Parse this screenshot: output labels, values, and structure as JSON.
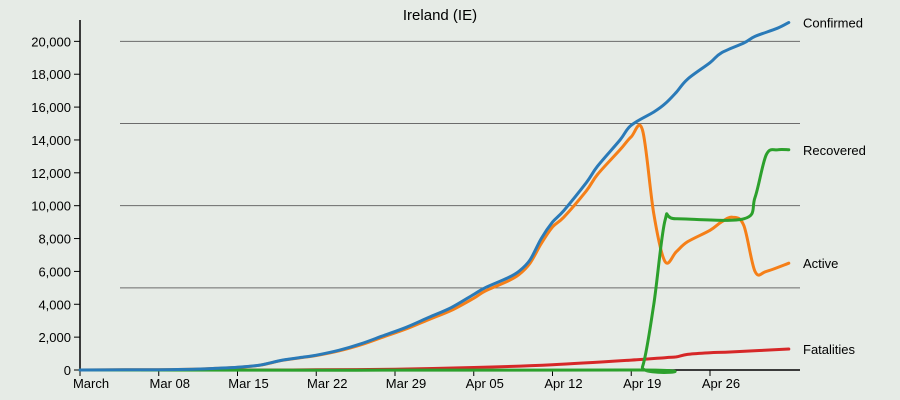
{
  "chart_data": {
    "type": "line",
    "title": "Ireland (IE)",
    "xlabel": "",
    "ylabel": "",
    "x_start": "2020-03-01",
    "x_end": "2020-05-04",
    "ylim": [
      0,
      21300
    ],
    "x_ticks": [
      {
        "label": "March",
        "date": "2020-03-01"
      },
      {
        "label": "Mar 08",
        "date": "2020-03-08"
      },
      {
        "label": "Mar 15",
        "date": "2020-03-15"
      },
      {
        "label": "Mar 22",
        "date": "2020-03-22"
      },
      {
        "label": "Mar 29",
        "date": "2020-03-29"
      },
      {
        "label": "Apr 05",
        "date": "2020-04-05"
      },
      {
        "label": "Apr 12",
        "date": "2020-04-12"
      },
      {
        "label": "Apr 19",
        "date": "2020-04-19"
      },
      {
        "label": "Apr 26",
        "date": "2020-04-26"
      }
    ],
    "y_ticks": [
      {
        "label": "0",
        "value": 0
      },
      {
        "label": "2,000",
        "value": 2000
      },
      {
        "label": "4,000",
        "value": 4000
      },
      {
        "label": "6,000",
        "value": 6000
      },
      {
        "label": "8,000",
        "value": 8000
      },
      {
        "label": "10,000",
        "value": 10000
      },
      {
        "label": "12,000",
        "value": 12000
      },
      {
        "label": "14,000",
        "value": 14000
      },
      {
        "label": "16,000",
        "value": 16000
      },
      {
        "label": "18,000",
        "value": 18000
      },
      {
        "label": "20,000",
        "value": 20000
      }
    ],
    "gridlines": [
      5000,
      10000,
      15000,
      20000
    ],
    "series": [
      {
        "name": "Confirmed",
        "color": "#2a7ab8",
        "points": [
          [
            "2020-03-01",
            0
          ],
          [
            "2020-03-05",
            10
          ],
          [
            "2020-03-08",
            20
          ],
          [
            "2020-03-11",
            50
          ],
          [
            "2020-03-13",
            100
          ],
          [
            "2020-03-15",
            170
          ],
          [
            "2020-03-17",
            300
          ],
          [
            "2020-03-19",
            600
          ],
          [
            "2020-03-21",
            800
          ],
          [
            "2020-03-22",
            900
          ],
          [
            "2020-03-24",
            1200
          ],
          [
            "2020-03-26",
            1600
          ],
          [
            "2020-03-28",
            2100
          ],
          [
            "2020-03-30",
            2600
          ],
          [
            "2020-04-01",
            3200
          ],
          [
            "2020-04-03",
            3800
          ],
          [
            "2020-04-05",
            4600
          ],
          [
            "2020-04-06",
            5000
          ],
          [
            "2020-04-08",
            5600
          ],
          [
            "2020-04-09",
            6000
          ],
          [
            "2020-04-10",
            6700
          ],
          [
            "2020-04-11",
            8000
          ],
          [
            "2020-04-12",
            9000
          ],
          [
            "2020-04-13",
            9700
          ],
          [
            "2020-04-15",
            11400
          ],
          [
            "2020-04-16",
            12400
          ],
          [
            "2020-04-18",
            14000
          ],
          [
            "2020-04-19",
            14900
          ],
          [
            "2020-04-21",
            15700
          ],
          [
            "2020-04-22",
            16200
          ],
          [
            "2020-04-23",
            16900
          ],
          [
            "2020-04-24",
            17700
          ],
          [
            "2020-04-26",
            18700
          ],
          [
            "2020-04-27",
            19300
          ],
          [
            "2020-04-29",
            19900
          ],
          [
            "2020-04-30",
            20300
          ],
          [
            "2020-05-02",
            20800
          ],
          [
            "2020-05-03",
            21150
          ]
        ]
      },
      {
        "name": "Recovered",
        "color": "#2ca02c",
        "points": [
          [
            "2020-03-01",
            0
          ],
          [
            "2020-04-19",
            0
          ],
          [
            "2020-04-20",
            200
          ],
          [
            "2020-04-21",
            4000
          ],
          [
            "2020-04-22",
            9100
          ],
          [
            "2020-04-23",
            9200
          ],
          [
            "2020-04-29",
            9200
          ],
          [
            "2020-04-30",
            10500
          ],
          [
            "2020-05-01",
            13100
          ],
          [
            "2020-05-02",
            13400
          ],
          [
            "2020-05-03",
            13400
          ]
        ]
      },
      {
        "name": "Active",
        "color": "#f57f18",
        "points": [
          [
            "2020-03-01",
            0
          ],
          [
            "2020-03-05",
            10
          ],
          [
            "2020-03-08",
            20
          ],
          [
            "2020-03-11",
            50
          ],
          [
            "2020-03-13",
            100
          ],
          [
            "2020-03-15",
            160
          ],
          [
            "2020-03-17",
            290
          ],
          [
            "2020-03-19",
            590
          ],
          [
            "2020-03-21",
            780
          ],
          [
            "2020-03-22",
            880
          ],
          [
            "2020-03-24",
            1160
          ],
          [
            "2020-03-26",
            1540
          ],
          [
            "2020-03-28",
            2020
          ],
          [
            "2020-03-30",
            2500
          ],
          [
            "2020-04-01",
            3070
          ],
          [
            "2020-04-03",
            3630
          ],
          [
            "2020-04-05",
            4370
          ],
          [
            "2020-04-06",
            4800
          ],
          [
            "2020-04-08",
            5400
          ],
          [
            "2020-04-09",
            5800
          ],
          [
            "2020-04-10",
            6500
          ],
          [
            "2020-04-11",
            7700
          ],
          [
            "2020-04-12",
            8700
          ],
          [
            "2020-04-13",
            9300
          ],
          [
            "2020-04-15",
            10900
          ],
          [
            "2020-04-16",
            11900
          ],
          [
            "2020-04-18",
            13400
          ],
          [
            "2020-04-19",
            14200
          ],
          [
            "2020-04-20",
            14600
          ],
          [
            "2020-04-21",
            9500
          ],
          [
            "2020-04-22",
            6600
          ],
          [
            "2020-04-23",
            7200
          ],
          [
            "2020-04-24",
            7800
          ],
          [
            "2020-04-26",
            8500
          ],
          [
            "2020-04-27",
            9000
          ],
          [
            "2020-04-28",
            9300
          ],
          [
            "2020-04-29",
            8800
          ],
          [
            "2020-04-30",
            6000
          ],
          [
            "2020-05-01",
            6000
          ],
          [
            "2020-05-03",
            6500
          ]
        ]
      },
      {
        "name": "Fatalities",
        "color": "#d62728",
        "points": [
          [
            "2020-03-01",
            0
          ],
          [
            "2020-03-15",
            0
          ],
          [
            "2020-03-22",
            10
          ],
          [
            "2020-03-29",
            50
          ],
          [
            "2020-04-05",
            150
          ],
          [
            "2020-04-12",
            320
          ],
          [
            "2020-04-19",
            600
          ],
          [
            "2020-04-22",
            750
          ],
          [
            "2020-04-23",
            800
          ],
          [
            "2020-04-24",
            950
          ],
          [
            "2020-04-26",
            1050
          ],
          [
            "2020-04-28",
            1100
          ],
          [
            "2020-05-03",
            1280
          ]
        ]
      }
    ]
  }
}
